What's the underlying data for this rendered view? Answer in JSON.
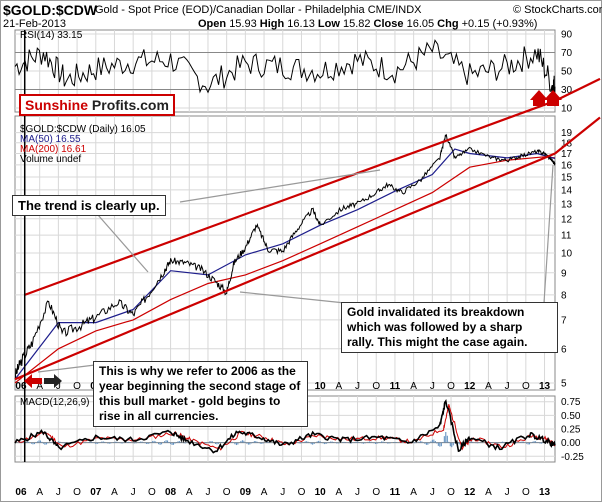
{
  "header": {
    "symbol": "$GOLD:$CDW",
    "description": "Gold - Spot Price (EOD)/Canadian Dollar - Philadelphia",
    "exchange": "CME/INDX",
    "date": "21-Feb-2013",
    "open_label": "Open",
    "open": "15.93",
    "high_label": "High",
    "high": "16.13",
    "low_label": "Low",
    "low": "15.82",
    "close_label": "Close",
    "close": "16.05",
    "chg_label": "Chg",
    "chg": "+0.15 (+0.93%)",
    "copyright": "© StockCharts.com"
  },
  "brand": {
    "part1": "Sunshine",
    "part2": "Profits.com"
  },
  "annotations": {
    "trend": "The trend is clearly up.",
    "invalidation": "Gold invalidated its breakdown which was followed by a sharp rally. This might the case again.",
    "why2006": "This is why we refer to 2006 as the year beginning the second stage of this bull market - gold begins to rise in all currencies."
  },
  "colors": {
    "price": "#000000",
    "ma50": "#1e1e8c",
    "ma200": "#cc0000",
    "channel": "#cc0000",
    "macd": "#000000",
    "macd_signal": "#cc0000",
    "histogram": "#5588bb",
    "grid": "#d8d8d8",
    "brand_red": "#cc0000"
  },
  "chart_data": [
    {
      "type": "line",
      "title": "RSI(14) 33.15",
      "name": "RSI(14)",
      "latest": 33.15,
      "ylim": [
        10,
        90
      ],
      "y_ticks": [
        10,
        30,
        50,
        70,
        90
      ],
      "overbought": 70,
      "oversold": 30,
      "x": [
        2005.92,
        2006.3,
        2006.6,
        2007.0,
        2007.5,
        2008.0,
        2008.5,
        2009.0,
        2009.5,
        2010.0,
        2010.5,
        2011.0,
        2011.5,
        2012.0,
        2012.5,
        2012.9,
        2013.1,
        2013.14
      ],
      "values": [
        55,
        70,
        40,
        52,
        60,
        62,
        35,
        58,
        55,
        50,
        62,
        50,
        72,
        45,
        55,
        70,
        35,
        33.15
      ]
    },
    {
      "type": "line",
      "title": "$GOLD:$CDW (Daily) 16.05",
      "legend": [
        "$GOLD:$CDW (Daily) 16.05",
        "MA(50) 16.55",
        "MA(200) 16.61",
        "Volume undef"
      ],
      "scale": "log",
      "ylim": [
        5,
        20
      ],
      "y_ticks": [
        5,
        6,
        7,
        8,
        9,
        10,
        11,
        12,
        13,
        14,
        15,
        16,
        17,
        18,
        19
      ],
      "x_ticks": [
        "06",
        "A",
        "J",
        "O",
        "07",
        "A",
        "J",
        "O",
        "08",
        "A",
        "J",
        "O",
        "09",
        "A",
        "J",
        "O",
        "10",
        "A",
        "J",
        "O",
        "11",
        "A",
        "J",
        "O",
        "12",
        "A",
        "J",
        "O",
        "13"
      ],
      "x_tick_values": [
        2006.0,
        2006.25,
        2006.5,
        2006.75,
        2007.0,
        2007.25,
        2007.5,
        2007.75,
        2008.0,
        2008.25,
        2008.5,
        2008.75,
        2009.0,
        2009.25,
        2009.5,
        2009.75,
        2010.0,
        2010.25,
        2010.5,
        2010.75,
        2011.0,
        2011.25,
        2011.5,
        2011.75,
        2012.0,
        2012.25,
        2012.5,
        2012.75,
        2013.0
      ],
      "series": [
        {
          "name": "$GOLD:$CDW",
          "x": [
            2005.92,
            2006.0,
            2006.15,
            2006.37,
            2006.55,
            2006.8,
            2007.0,
            2007.3,
            2007.5,
            2007.7,
            2007.9,
            2008.0,
            2008.2,
            2008.4,
            2008.6,
            2008.75,
            2008.85,
            2009.0,
            2009.15,
            2009.3,
            2009.5,
            2009.7,
            2009.9,
            2010.0,
            2010.3,
            2010.5,
            2010.75,
            2010.9,
            2011.1,
            2011.35,
            2011.6,
            2011.68,
            2011.8,
            2012.0,
            2012.3,
            2012.5,
            2012.7,
            2012.9,
            2013.0,
            2013.1,
            2013.14
          ],
          "values": [
            5.2,
            5.6,
            6.2,
            7.7,
            6.5,
            6.8,
            7.1,
            7.7,
            7.2,
            8.0,
            9.0,
            9.6,
            9.5,
            9.2,
            8.6,
            8.1,
            9.5,
            10.3,
            11.6,
            10.2,
            10.1,
            11.4,
            12.6,
            11.6,
            12.7,
            13.0,
            13.8,
            14.4,
            13.8,
            14.8,
            16.6,
            18.8,
            16.6,
            17.4,
            16.6,
            16.4,
            16.8,
            17.2,
            17.0,
            16.4,
            16.05
          ]
        },
        {
          "name": "MA(50)",
          "latest": 16.55,
          "x": [
            2005.92,
            2006.5,
            2007.0,
            2007.5,
            2008.0,
            2008.5,
            2009.0,
            2009.5,
            2010.0,
            2010.5,
            2011.0,
            2011.5,
            2011.8,
            2012.0,
            2012.5,
            2012.9,
            2013.14
          ],
          "values": [
            5.1,
            6.9,
            6.9,
            7.4,
            9.1,
            8.9,
            9.9,
            10.5,
            11.6,
            12.6,
            13.9,
            15.2,
            17.4,
            17.0,
            16.6,
            17.0,
            16.55
          ]
        },
        {
          "name": "MA(200)",
          "latest": 16.61,
          "x": [
            2005.92,
            2006.5,
            2007.0,
            2007.5,
            2008.0,
            2008.5,
            2009.0,
            2009.5,
            2010.0,
            2010.5,
            2011.0,
            2011.5,
            2012.0,
            2012.5,
            2013.0,
            2013.14
          ],
          "values": [
            5.0,
            6.0,
            6.6,
            7.0,
            7.8,
            8.5,
            8.9,
            9.6,
            10.5,
            11.5,
            12.6,
            13.8,
            15.8,
            16.4,
            16.7,
            16.61
          ]
        }
      ],
      "channel": {
        "upper": {
          "x": [
            2006.05,
            2013.14
          ],
          "values": [
            8.0,
            22.5
          ]
        },
        "lower": {
          "x": [
            2005.92,
            2013.14
          ],
          "values": [
            5.1,
            17.0
          ]
        }
      }
    },
    {
      "type": "line",
      "title": "MACD(12,26,9)",
      "ylim": [
        -0.3,
        0.8
      ],
      "y_ticks": [
        -0.25,
        0.0,
        0.25,
        0.5,
        0.75
      ],
      "series": [
        {
          "name": "MACD",
          "x": [
            2005.92,
            2006.3,
            2006.5,
            2007.0,
            2007.5,
            2008.0,
            2008.2,
            2008.6,
            2008.9,
            2009.2,
            2009.5,
            2009.9,
            2010.3,
            2010.8,
            2011.2,
            2011.6,
            2011.68,
            2011.85,
            2012.0,
            2012.4,
            2012.8,
            2013.0,
            2013.14
          ],
          "values": [
            0.0,
            0.2,
            -0.1,
            0.1,
            0.05,
            0.2,
            0.05,
            -0.15,
            0.2,
            0.1,
            -0.05,
            0.15,
            0.05,
            0.1,
            0.0,
            0.3,
            0.78,
            -0.15,
            0.1,
            -0.1,
            0.15,
            0.05,
            -0.05
          ]
        },
        {
          "name": "Signal",
          "x": [
            2005.92,
            2006.35,
            2006.55,
            2007.05,
            2007.55,
            2008.05,
            2008.25,
            2008.65,
            2008.95,
            2009.25,
            2009.55,
            2009.95,
            2010.35,
            2010.85,
            2011.25,
            2011.65,
            2011.72,
            2011.9,
            2012.05,
            2012.45,
            2012.85,
            2013.05,
            2013.14
          ],
          "values": [
            0.0,
            0.18,
            -0.08,
            0.08,
            0.05,
            0.18,
            0.06,
            -0.12,
            0.18,
            0.1,
            -0.04,
            0.13,
            0.06,
            0.09,
            0.01,
            0.26,
            0.68,
            -0.1,
            0.08,
            -0.08,
            0.13,
            0.06,
            -0.03
          ]
        }
      ]
    }
  ]
}
